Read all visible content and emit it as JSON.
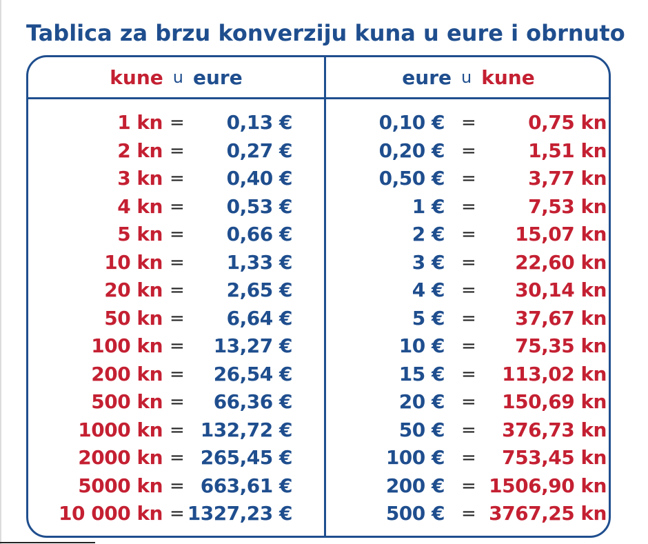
{
  "title": "Tablica za brzu konverziju kuna u eure i obrnuto",
  "left_header": {
    "from": "kune",
    "word": "u",
    "to": "eure"
  },
  "right_header": {
    "from": "eure",
    "word": "u",
    "to": "kune"
  },
  "equals": "=",
  "kn_to_eur": [
    {
      "kn": "1 kn",
      "eur": "0,13 €"
    },
    {
      "kn": "2 kn",
      "eur": "0,27 €"
    },
    {
      "kn": "3 kn",
      "eur": "0,40 €"
    },
    {
      "kn": "4 kn",
      "eur": "0,53 €"
    },
    {
      "kn": "5 kn",
      "eur": "0,66 €"
    },
    {
      "kn": "10 kn",
      "eur": "1,33 €"
    },
    {
      "kn": "20 kn",
      "eur": "2,65 €"
    },
    {
      "kn": "50 kn",
      "eur": "6,64 €"
    },
    {
      "kn": "100 kn",
      "eur": "13,27 €"
    },
    {
      "kn": "200 kn",
      "eur": "26,54 €"
    },
    {
      "kn": "500 kn",
      "eur": "66,36 €"
    },
    {
      "kn": "1000 kn",
      "eur": "132,72 €"
    },
    {
      "kn": "2000 kn",
      "eur": "265,45 €"
    },
    {
      "kn": "5000 kn",
      "eur": "663,61 €"
    },
    {
      "kn": "10 000 kn",
      "eur": "1327,23 €"
    }
  ],
  "eur_to_kn": [
    {
      "eur": "0,10 €",
      "kn": "0,75 kn"
    },
    {
      "eur": "0,20 €",
      "kn": "1,51 kn"
    },
    {
      "eur": "0,50 €",
      "kn": "3,77 kn"
    },
    {
      "eur": "1 €",
      "kn": "7,53 kn"
    },
    {
      "eur": "2 €",
      "kn": "15,07 kn"
    },
    {
      "eur": "3 €",
      "kn": "22,60 kn"
    },
    {
      "eur": "4 €",
      "kn": "30,14 kn"
    },
    {
      "eur": "5 €",
      "kn": "37,67 kn"
    },
    {
      "eur": "10 €",
      "kn": "75,35 kn"
    },
    {
      "eur": "15 €",
      "kn": "113,02 kn"
    },
    {
      "eur": "20 €",
      "kn": "150,69 kn"
    },
    {
      "eur": "50 €",
      "kn": "376,73 kn"
    },
    {
      "eur": "100 €",
      "kn": "753,45 kn"
    },
    {
      "eur": "200 €",
      "kn": "1506,90 kn"
    },
    {
      "eur": "500 €",
      "kn": "3767,25 kn"
    }
  ],
  "colors": {
    "blue": "#1f4e8e",
    "red": "#c42032"
  }
}
